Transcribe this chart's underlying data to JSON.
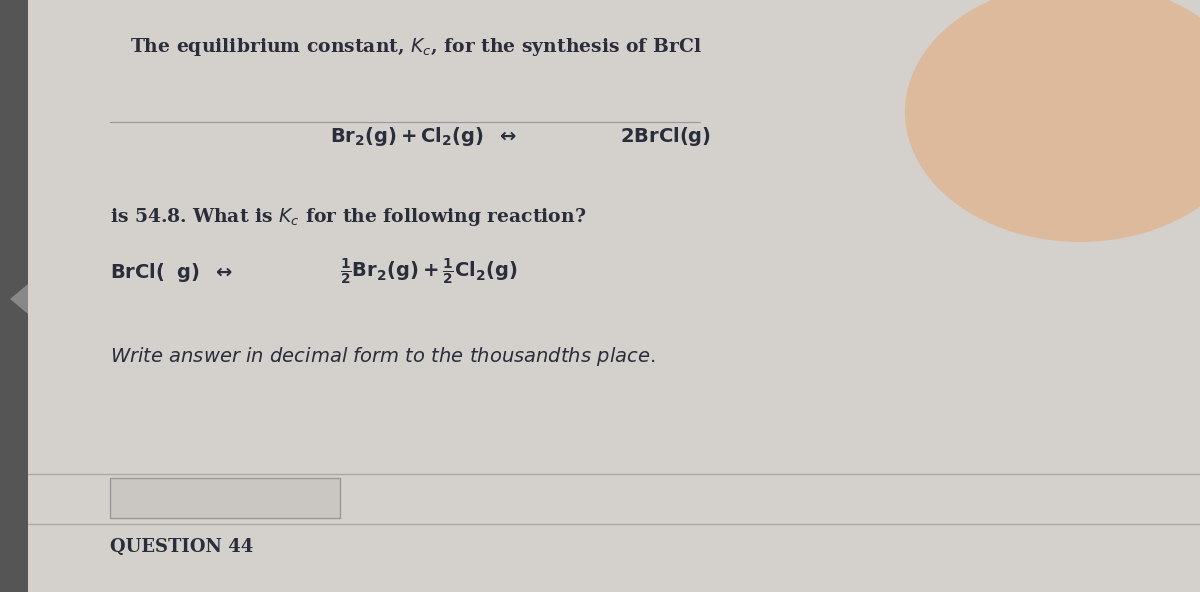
{
  "bg_color_outer": "#c8c8c8",
  "bg_color_main": "#d4d0cc",
  "left_bar_color": "#555555",
  "text_color": "#2a2d3a",
  "title_text": "The equilibrium constant, $K_c$, for the synthesis of BrCl",
  "middle_text": "is 54.8. What is $K_c$ for the following reaction?",
  "footer_text": "Write answer in decimal form to the thousandths place.",
  "question_text": "QUESTION 44",
  "glow_color": "#e8a060",
  "glow_alpha": 0.45,
  "line_color": "#aaaaaa",
  "answer_box_color": "#c8c4c0",
  "figwidth": 12.0,
  "figheight": 5.92
}
